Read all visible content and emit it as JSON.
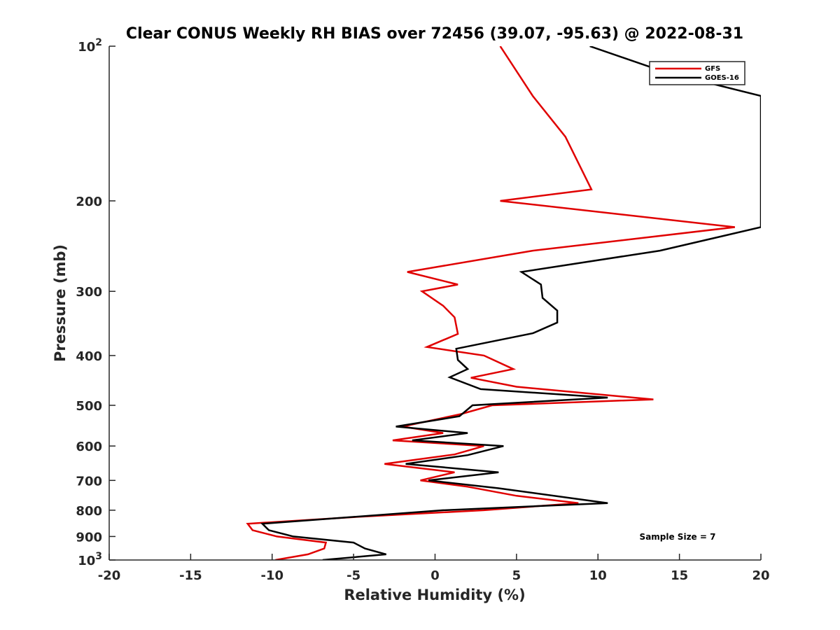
{
  "chart_data": {
    "type": "line",
    "title": "Clear CONUS Weekly RH BIAS over 72456 (39.07, -95.63) @ 2022-08-31",
    "xlabel": "Relative Humidity (%)",
    "ylabel": "Pressure (mb)",
    "xlim": [
      -20,
      20
    ],
    "ylim": [
      1000,
      100
    ],
    "yscale": "log",
    "y_reversed": true,
    "xticks": [
      -20,
      -15,
      -10,
      -5,
      0,
      5,
      10,
      15,
      20
    ],
    "xtick_labels": [
      "-20",
      "-15",
      "-10",
      "-5",
      "0",
      "5",
      "10",
      "15",
      "20"
    ],
    "ytick_labels": [
      {
        "value": 100,
        "base": "10",
        "exp": "2"
      },
      {
        "value": 200,
        "text": "200"
      },
      {
        "value": 300,
        "text": "300"
      },
      {
        "value": 400,
        "text": "400"
      },
      {
        "value": 500,
        "text": "500"
      },
      {
        "value": 600,
        "text": "600"
      },
      {
        "value": 700,
        "text": "700"
      },
      {
        "value": 800,
        "text": "800"
      },
      {
        "value": 900,
        "text": "900"
      },
      {
        "value": 1000,
        "base": "10",
        "exp": "3"
      }
    ],
    "legend_position": "top-right",
    "annotation": "Sample Size = 7",
    "series": [
      {
        "name": "GFS",
        "color": "#e00000",
        "points": [
          [
            4.0,
            100
          ],
          [
            6.0,
            125
          ],
          [
            8.0,
            150
          ],
          [
            9.6,
            190
          ],
          [
            4.0,
            200
          ],
          [
            18.4,
            225
          ],
          [
            6.0,
            250
          ],
          [
            -1.7,
            275
          ],
          [
            1.4,
            291
          ],
          [
            -0.8,
            300
          ],
          [
            0.5,
            320
          ],
          [
            1.2,
            337
          ],
          [
            1.4,
            363
          ],
          [
            -0.5,
            385
          ],
          [
            3.0,
            400
          ],
          [
            4.8,
            425
          ],
          [
            2.2,
            442
          ],
          [
            5.0,
            460
          ],
          [
            13.4,
            487
          ],
          [
            3.5,
            500
          ],
          [
            1.6,
            520
          ],
          [
            -2.0,
            550
          ],
          [
            0.5,
            566
          ],
          [
            -2.6,
            585
          ],
          [
            3.0,
            600
          ],
          [
            1.2,
            623
          ],
          [
            -3.1,
            650
          ],
          [
            1.2,
            675
          ],
          [
            -0.9,
            700
          ],
          [
            2.0,
            720
          ],
          [
            5.0,
            750
          ],
          [
            8.8,
            775
          ],
          [
            3.0,
            800
          ],
          [
            -5.0,
            825
          ],
          [
            -11.5,
            850
          ],
          [
            -11.2,
            875
          ],
          [
            -9.7,
            900
          ],
          [
            -6.7,
            925
          ],
          [
            -6.8,
            950
          ],
          [
            -7.8,
            975
          ],
          [
            -9.8,
            1000
          ]
        ]
      },
      {
        "name": "GOES-16",
        "color": "#000000",
        "points": [
          [
            9.5,
            100
          ],
          [
            14.0,
            112
          ],
          [
            20.0,
            125
          ],
          [
            20.0,
            225
          ],
          [
            13.8,
            250
          ],
          [
            5.3,
            275
          ],
          [
            6.5,
            291
          ],
          [
            6.6,
            309
          ],
          [
            7.5,
            327
          ],
          [
            7.5,
            345
          ],
          [
            6.0,
            362
          ],
          [
            1.3,
            388
          ],
          [
            1.4,
            408
          ],
          [
            2.0,
            425
          ],
          [
            0.9,
            441
          ],
          [
            2.8,
            465
          ],
          [
            10.6,
            483
          ],
          [
            2.3,
            500
          ],
          [
            1.5,
            525
          ],
          [
            -2.4,
            550
          ],
          [
            2.0,
            566
          ],
          [
            -1.4,
            585
          ],
          [
            4.2,
            600
          ],
          [
            2.0,
            625
          ],
          [
            -1.8,
            650
          ],
          [
            3.9,
            675
          ],
          [
            -0.4,
            700
          ],
          [
            3.9,
            725
          ],
          [
            10.6,
            775
          ],
          [
            0.5,
            800
          ],
          [
            -10.6,
            850
          ],
          [
            -10.2,
            875
          ],
          [
            -8.7,
            900
          ],
          [
            -5.0,
            925
          ],
          [
            -4.3,
            950
          ],
          [
            -3.0,
            975
          ],
          [
            -6.9,
            1000
          ]
        ]
      }
    ]
  }
}
